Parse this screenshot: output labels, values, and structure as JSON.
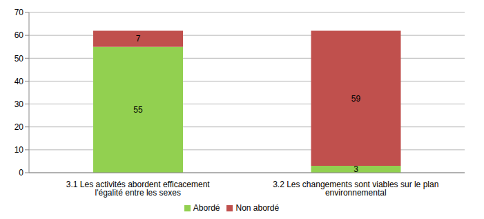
{
  "chart_data": {
    "type": "bar",
    "categories": [
      "3.1 Les activités abordent efficacement l'égalité entre les sexes",
      "3.2 Les changements sont viables sur le plan environnemental"
    ],
    "series": [
      {
        "name": "Abordé",
        "color": "#92d050",
        "values": [
          55,
          3
        ]
      },
      {
        "name": "Non abordé",
        "color": "#c0504d",
        "values": [
          7,
          59
        ]
      }
    ],
    "ylim": [
      0,
      70
    ],
    "yticks": [
      0,
      10,
      20,
      30,
      40,
      50,
      60,
      70
    ],
    "grid": true,
    "stacked": true,
    "data_labels": true,
    "legend": "bottom"
  }
}
